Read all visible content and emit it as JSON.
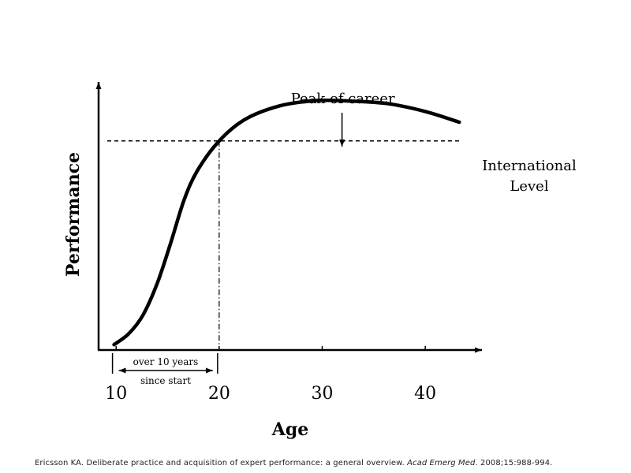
{
  "chart_data": {
    "type": "line",
    "xlabel": "Age",
    "ylabel": "Performance",
    "x_ticks": [
      10,
      20,
      30,
      40
    ],
    "xlim": [
      8.3,
      45.5
    ],
    "ylim": [
      0,
      1
    ],
    "y_ticks_labeled": false,
    "grid": false,
    "legend": "none",
    "series": [
      {
        "points": [
          {
            "x": 9.8,
            "y": 0.02
          },
          {
            "x": 11.2,
            "y": 0.06
          },
          {
            "x": 12.6,
            "y": 0.13
          },
          {
            "x": 14.0,
            "y": 0.25
          },
          {
            "x": 15.3,
            "y": 0.4
          },
          {
            "x": 16.6,
            "y": 0.56
          },
          {
            "x": 17.9,
            "y": 0.67
          },
          {
            "x": 20.0,
            "y": 0.78
          },
          {
            "x": 22.5,
            "y": 0.86
          },
          {
            "x": 25.8,
            "y": 0.91
          },
          {
            "x": 29.2,
            "y": 0.93
          },
          {
            "x": 32.0,
            "y": 0.93
          },
          {
            "x": 36.2,
            "y": 0.92
          },
          {
            "x": 40.0,
            "y": 0.89
          },
          {
            "x": 43.3,
            "y": 0.85
          }
        ]
      }
    ],
    "reference_line": {
      "y": 0.78,
      "style": "dashed",
      "label_line1": "International",
      "label_line2": "Level"
    },
    "crossing_marker": {
      "x": 20,
      "style": "dash-dot"
    },
    "peak_annotation": {
      "x": 32,
      "label": "Peak of career"
    },
    "span_annotation": {
      "from": 9.8,
      "to": 20,
      "label_top": "over 10 years",
      "label_bottom": "since start"
    }
  },
  "footer": {
    "citation": "Ericsson KA. Deliberate practice and acquisition of expert performance: a general overview. ",
    "journal": "Acad Emerg Med",
    "details": ". 2008;15:988-994."
  }
}
